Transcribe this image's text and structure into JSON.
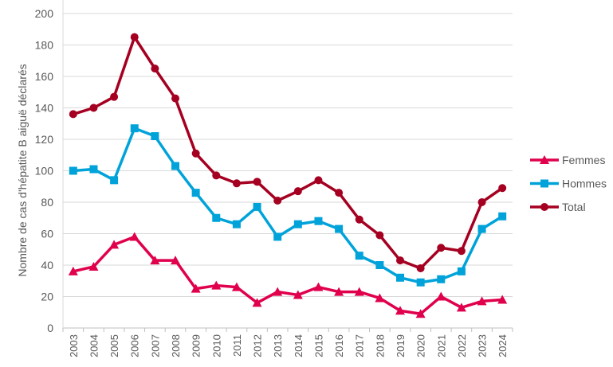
{
  "chart_data": {
    "type": "line",
    "title": "",
    "xlabel": "",
    "ylabel": "Nombre de cas d'hépatite B aiguë déclarés",
    "ylim": [
      0,
      200
    ],
    "yticks": [
      0,
      20,
      40,
      60,
      80,
      100,
      120,
      140,
      160,
      180,
      200
    ],
    "grid": true,
    "legend_position": "right",
    "categories": [
      "2003",
      "2004",
      "2005",
      "2006",
      "2007",
      "2008",
      "2009",
      "2010",
      "2011",
      "2012",
      "2013",
      "2014",
      "2015",
      "2016",
      "2017",
      "2018",
      "2019",
      "2020",
      "2021",
      "2022",
      "2023",
      "2024"
    ],
    "series": [
      {
        "name": "Femmes",
        "color": "#E0004D",
        "marker": "triangle",
        "values": [
          36,
          39,
          53,
          58,
          43,
          43,
          25,
          27,
          26,
          16,
          23,
          21,
          26,
          23,
          23,
          19,
          11,
          9,
          20,
          13,
          17,
          18
        ]
      },
      {
        "name": "Hommes",
        "color": "#00A3D9",
        "marker": "square",
        "values": [
          100,
          101,
          94,
          127,
          122,
          103,
          86,
          70,
          66,
          77,
          58,
          66,
          68,
          63,
          46,
          40,
          32,
          29,
          31,
          36,
          63,
          71
        ]
      },
      {
        "name": "Total",
        "color": "#A50021",
        "marker": "circle",
        "values": [
          136,
          140,
          147,
          185,
          165,
          146,
          111,
          97,
          92,
          93,
          81,
          87,
          94,
          86,
          69,
          59,
          43,
          38,
          51,
          49,
          80,
          89
        ]
      }
    ]
  }
}
